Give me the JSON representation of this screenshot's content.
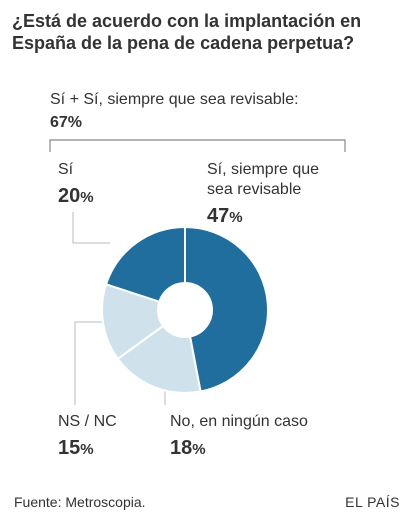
{
  "title": "¿Está de acuerdo con la implantación en España de la pena de cadena perpetua?",
  "footer": {
    "source": "Fuente: Metroscopia.",
    "brand": "EL PAÍS"
  },
  "group": {
    "label": "Sí + Sí, siempre que sea revisable:",
    "value": "67",
    "unit": "%"
  },
  "labels": {
    "si": {
      "text": "Sí",
      "value": "20",
      "unit": "%"
    },
    "si_revisable": {
      "line1": "Sí, siempre que",
      "line2": "sea revisable",
      "value": "47",
      "unit": "%"
    },
    "no": {
      "text": "No, en ningún caso",
      "value": "18",
      "unit": "%"
    },
    "ns_nc": {
      "text": "NS / NC",
      "value": "15",
      "unit": "%"
    }
  },
  "colors": {
    "dark": "#1f6e9e",
    "light": "#cfe2ec",
    "bracket": "#888888",
    "leader": "#bbbbbb"
  },
  "chart_data": {
    "type": "pie",
    "title": "¿Está de acuerdo con la implantación en España de la pena de cadena perpetua?",
    "slices": [
      {
        "name": "Sí, siempre que sea revisable",
        "value": 47,
        "color": "#1f6e9e"
      },
      {
        "name": "No, en ningún caso",
        "value": 18,
        "color": "#cfe2ec"
      },
      {
        "name": "NS / NC",
        "value": 15,
        "color": "#cfe2ec"
      },
      {
        "name": "Sí",
        "value": 20,
        "color": "#1f6e9e"
      }
    ],
    "start_angle_deg": 0,
    "direction": "clockwise",
    "donut": true
  }
}
